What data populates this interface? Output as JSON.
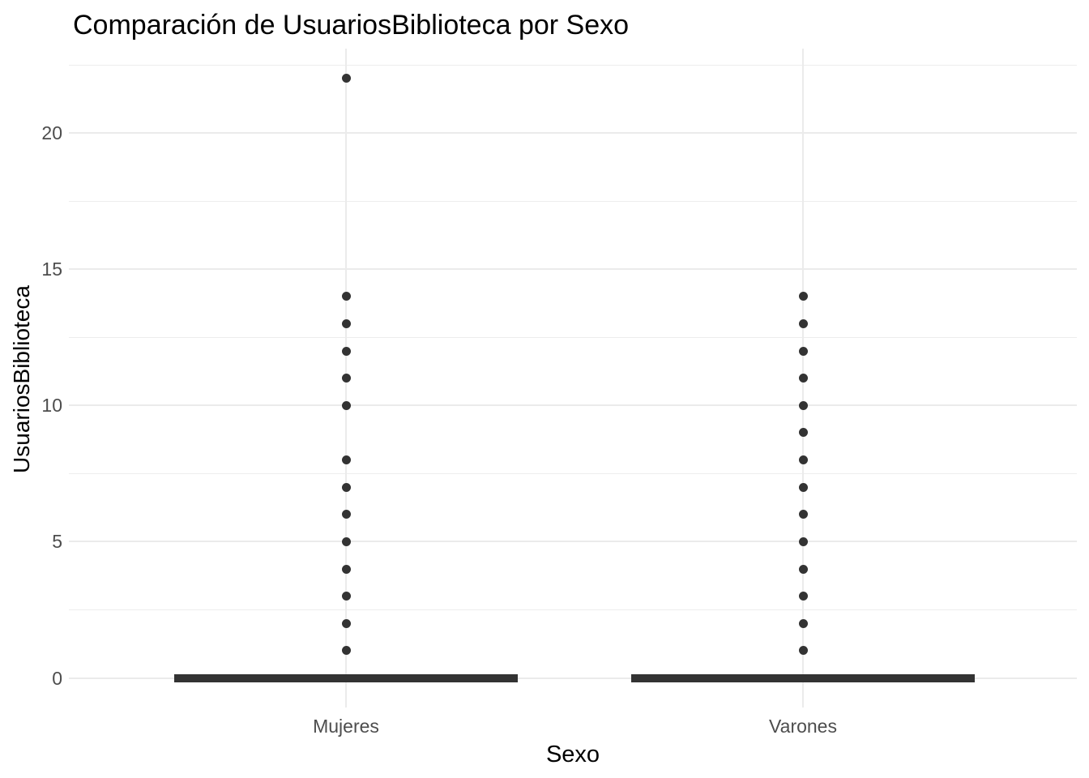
{
  "title": "Comparación de UsuariosBiblioteca por Sexo",
  "chart_data": {
    "type": "boxplot",
    "title": "Comparación de UsuariosBiblioteca por Sexo",
    "xlabel": "Sexo",
    "ylabel": "UsuariosBiblioteca",
    "categories": [
      "Mujeres",
      "Varones"
    ],
    "y_major_ticks": [
      0,
      5,
      10,
      15,
      20
    ],
    "y_minor_ticks": [
      2.5,
      7.5,
      12.5,
      17.5,
      22.5
    ],
    "ylim": [
      -1.1,
      23.1
    ],
    "grid": "horizontal major+minor and vertical category gridlines, light gray on white",
    "legend": "none",
    "series": [
      {
        "name": "Mujeres",
        "median": 0,
        "q1": 0,
        "q3": 0,
        "whisker_low": 0,
        "whisker_high": 0,
        "outliers": [
          1,
          2,
          3,
          4,
          5,
          6,
          7,
          8,
          10,
          11,
          12,
          13,
          14,
          22
        ]
      },
      {
        "name": "Varones",
        "median": 0,
        "q1": 0,
        "q3": 0,
        "whisker_low": 0,
        "whisker_high": 0,
        "outliers": [
          1,
          2,
          3,
          4,
          5,
          6,
          7,
          8,
          9,
          10,
          11,
          12,
          13,
          14
        ]
      }
    ],
    "colors": {
      "point": "#333333",
      "box": "#333333",
      "gridline": "#ebebeb",
      "tick_label": "#4d4d4d",
      "title": "#000000",
      "axis_title": "#000000",
      "background": "#ffffff"
    }
  }
}
